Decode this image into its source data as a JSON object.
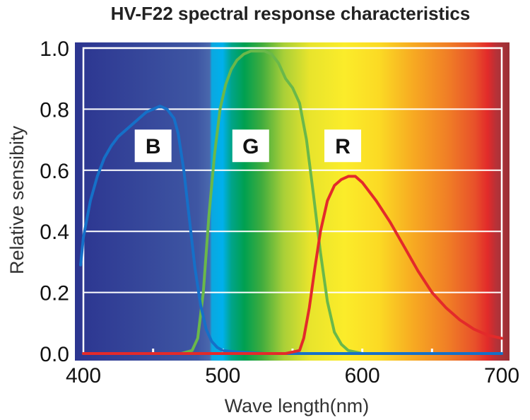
{
  "chart_data": {
    "type": "line",
    "title": "HV-F22 spectral response characteristics",
    "xlabel": "Wave length(nm)",
    "ylabel": "Relative sensibity",
    "xlim": [
      400,
      700
    ],
    "ylim": [
      0,
      1
    ],
    "x_ticks": [
      "400",
      "500",
      "600",
      "700"
    ],
    "y_ticks": [
      "0.0",
      "0.2",
      "0.4",
      "0.6",
      "0.8",
      "1.0"
    ],
    "grid": true,
    "background": "visible spectrum gradient",
    "series": [
      {
        "name": "B",
        "color": "#1570c8",
        "points": [
          [
            398,
            0.29
          ],
          [
            400,
            0.38
          ],
          [
            405,
            0.5
          ],
          [
            410,
            0.58
          ],
          [
            415,
            0.64
          ],
          [
            420,
            0.68
          ],
          [
            425,
            0.71
          ],
          [
            430,
            0.73
          ],
          [
            435,
            0.75
          ],
          [
            440,
            0.77
          ],
          [
            445,
            0.79
          ],
          [
            450,
            0.8
          ],
          [
            455,
            0.81
          ],
          [
            460,
            0.8
          ],
          [
            465,
            0.77
          ],
          [
            468,
            0.72
          ],
          [
            472,
            0.6
          ],
          [
            476,
            0.44
          ],
          [
            480,
            0.28
          ],
          [
            484,
            0.16
          ],
          [
            488,
            0.08
          ],
          [
            492,
            0.04
          ],
          [
            496,
            0.02
          ],
          [
            500,
            0.01
          ],
          [
            510,
            0.005
          ],
          [
            530,
            0.0
          ],
          [
            600,
            0.0
          ],
          [
            700,
            0.0
          ]
        ]
      },
      {
        "name": "G",
        "color": "#6ab84a",
        "points": [
          [
            400,
            0.0
          ],
          [
            470,
            0.0
          ],
          [
            478,
            0.01
          ],
          [
            482,
            0.05
          ],
          [
            486,
            0.2
          ],
          [
            490,
            0.45
          ],
          [
            494,
            0.65
          ],
          [
            498,
            0.8
          ],
          [
            502,
            0.88
          ],
          [
            506,
            0.93
          ],
          [
            510,
            0.96
          ],
          [
            515,
            0.98
          ],
          [
            520,
            0.99
          ],
          [
            530,
            0.99
          ],
          [
            535,
            0.98
          ],
          [
            540,
            0.95
          ],
          [
            545,
            0.9
          ],
          [
            550,
            0.87
          ],
          [
            555,
            0.82
          ],
          [
            560,
            0.7
          ],
          [
            565,
            0.52
          ],
          [
            570,
            0.33
          ],
          [
            575,
            0.17
          ],
          [
            580,
            0.07
          ],
          [
            585,
            0.03
          ],
          [
            590,
            0.01
          ],
          [
            600,
            0.0
          ],
          [
            700,
            0.0
          ]
        ]
      },
      {
        "name": "R",
        "color": "#e32a2a",
        "points": [
          [
            400,
            0.0
          ],
          [
            545,
            0.0
          ],
          [
            550,
            0.005
          ],
          [
            555,
            0.01
          ],
          [
            558,
            0.05
          ],
          [
            562,
            0.15
          ],
          [
            566,
            0.28
          ],
          [
            570,
            0.4
          ],
          [
            575,
            0.5
          ],
          [
            580,
            0.55
          ],
          [
            585,
            0.57
          ],
          [
            590,
            0.58
          ],
          [
            595,
            0.58
          ],
          [
            600,
            0.56
          ],
          [
            610,
            0.5
          ],
          [
            620,
            0.43
          ],
          [
            630,
            0.35
          ],
          [
            640,
            0.27
          ],
          [
            650,
            0.2
          ],
          [
            660,
            0.15
          ],
          [
            670,
            0.11
          ],
          [
            680,
            0.08
          ],
          [
            690,
            0.06
          ],
          [
            700,
            0.05
          ]
        ]
      }
    ]
  }
}
